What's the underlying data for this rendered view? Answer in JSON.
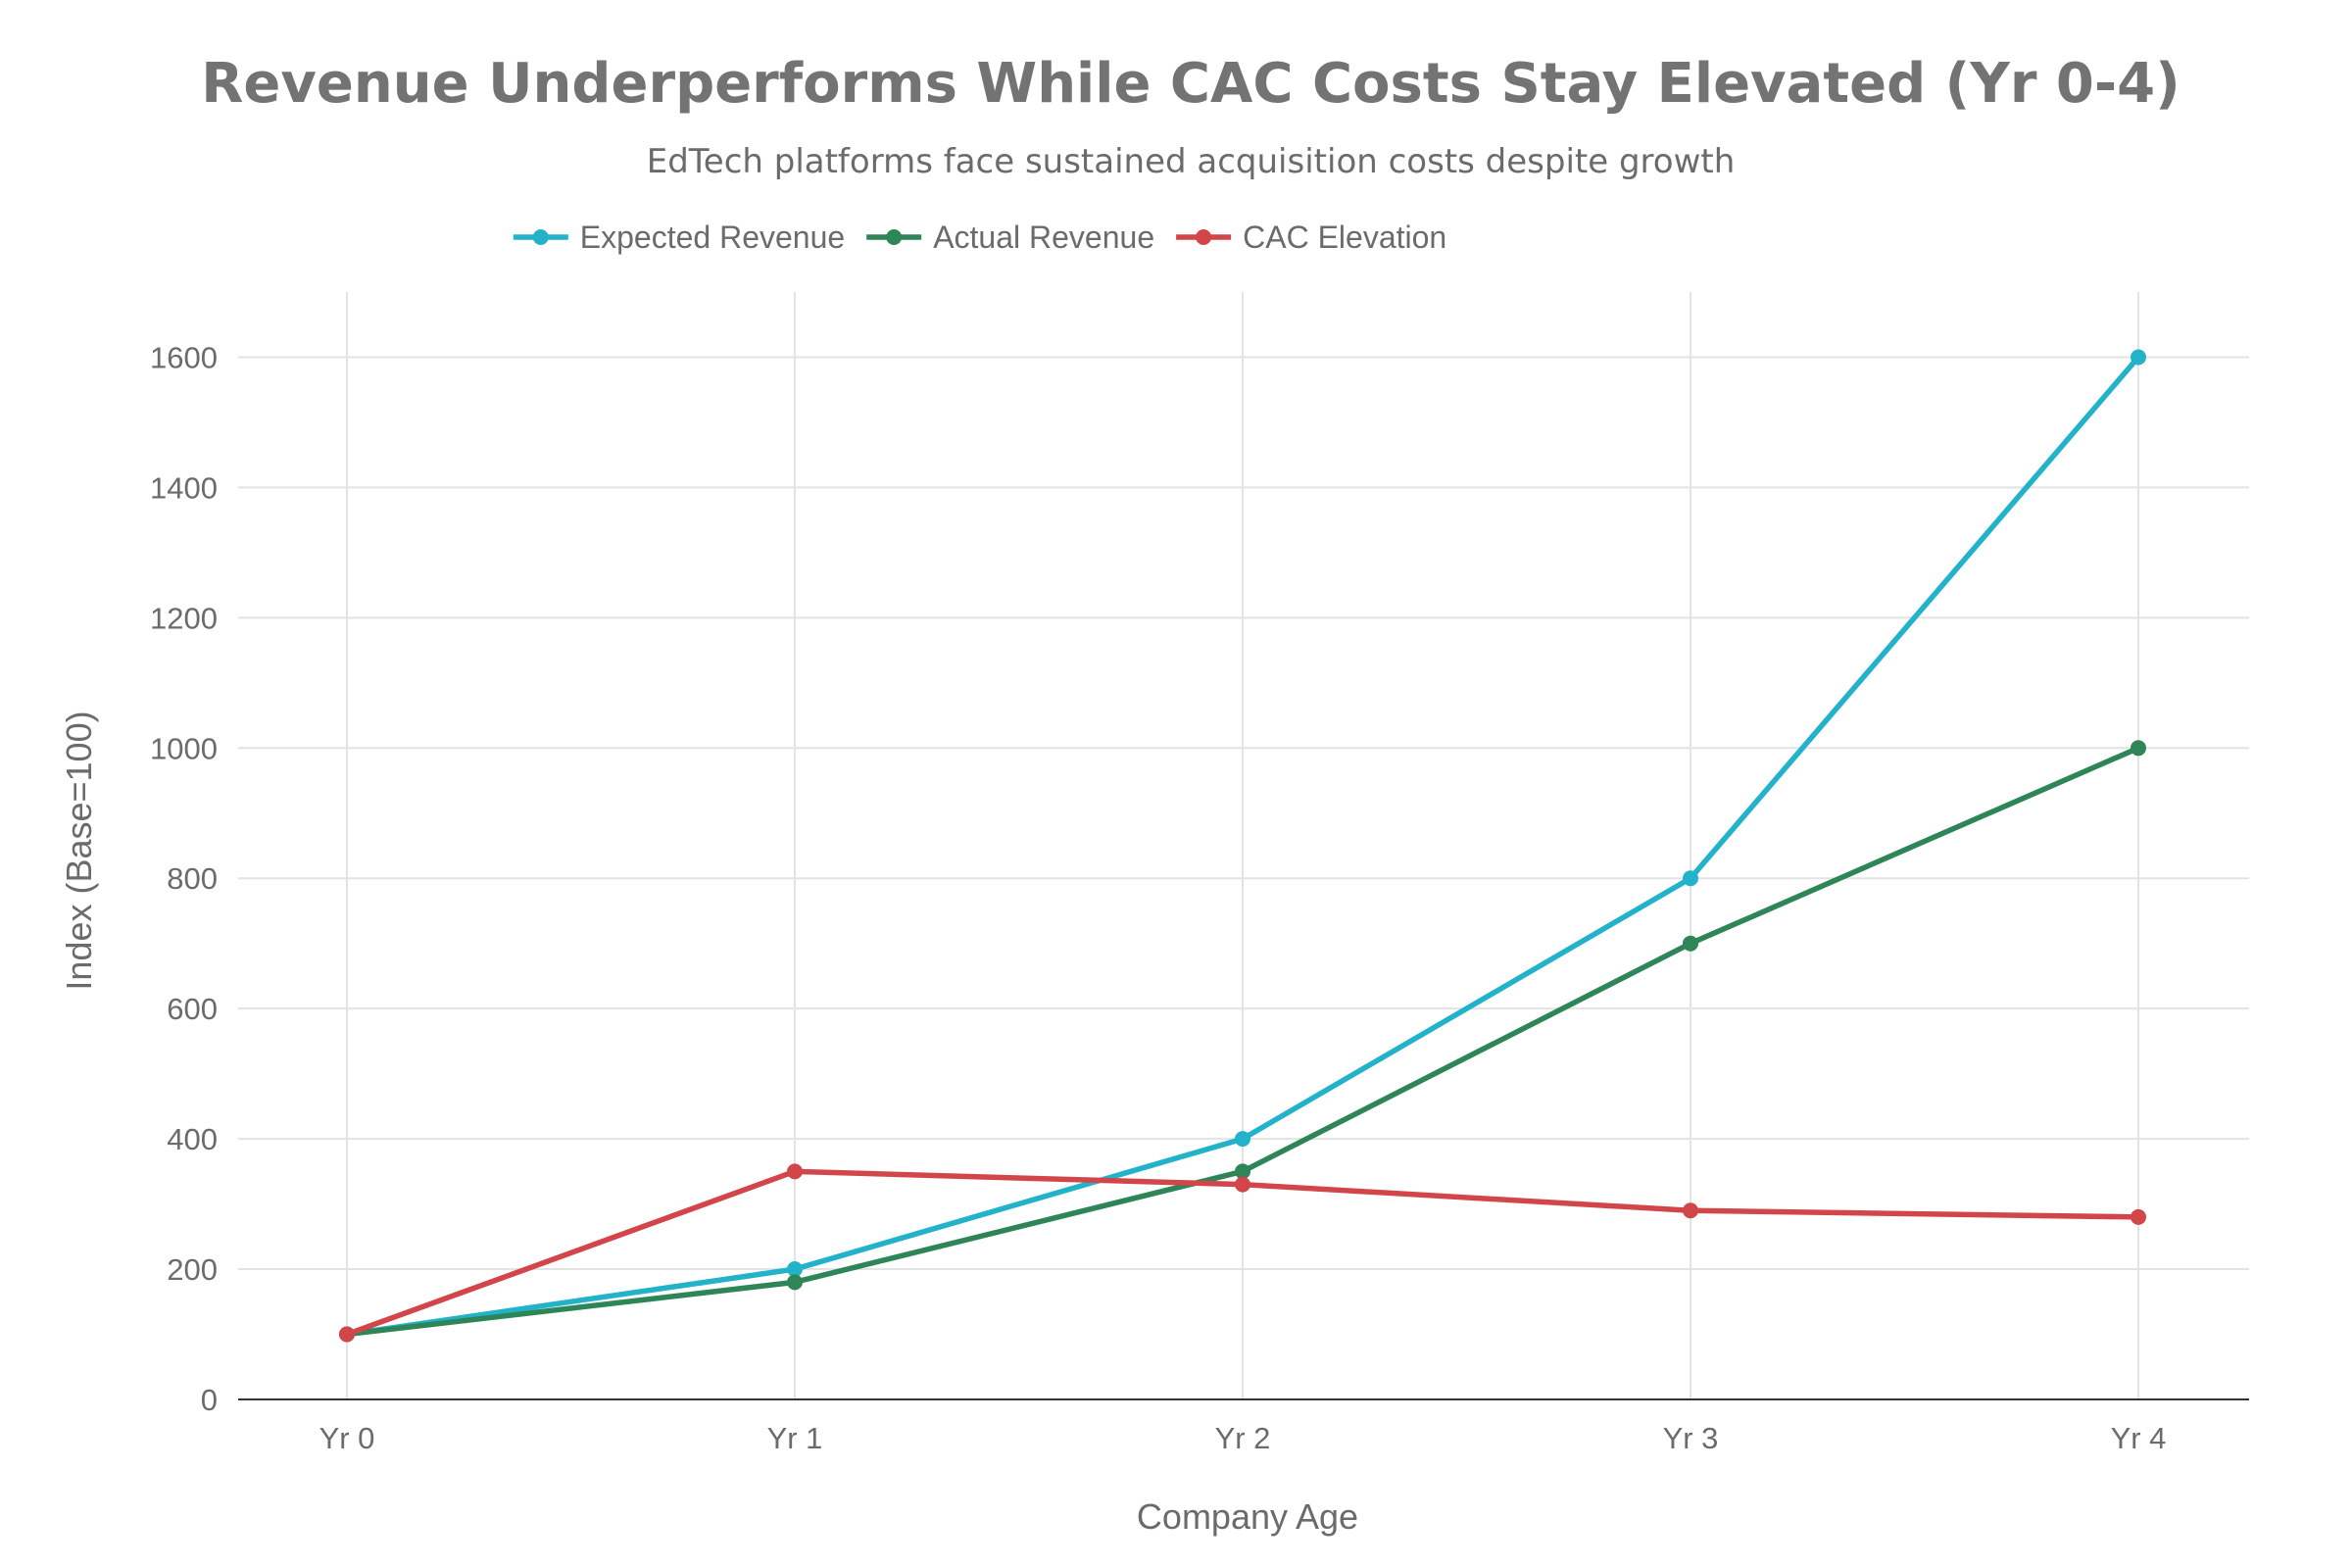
{
  "chart_data": {
    "type": "line",
    "title": "Revenue Underperforms While CAC Costs Stay Elevated (Yr 0-4)",
    "subtitle": "EdTech platforms face sustained acquisition costs despite growth",
    "xlabel": "Company Age",
    "ylabel": "Index (Base=100)",
    "categories": [
      "Yr 0",
      "Yr 1",
      "Yr 2",
      "Yr 3",
      "Yr 4"
    ],
    "ylim": [
      0,
      1700
    ],
    "yticks": [
      0,
      200,
      400,
      600,
      800,
      1000,
      1200,
      1400,
      1600
    ],
    "grid": true,
    "legend_position": "top-center",
    "series": [
      {
        "name": "Expected Revenue",
        "color": "#22b2c9",
        "values": [
          100,
          200,
          400,
          800,
          1600
        ]
      },
      {
        "name": "Actual Revenue",
        "color": "#2e8557",
        "values": [
          100,
          180,
          350,
          700,
          1000
        ]
      },
      {
        "name": "CAC Elevation",
        "color": "#d24548",
        "values": [
          100,
          350,
          330,
          290,
          280
        ]
      }
    ]
  }
}
